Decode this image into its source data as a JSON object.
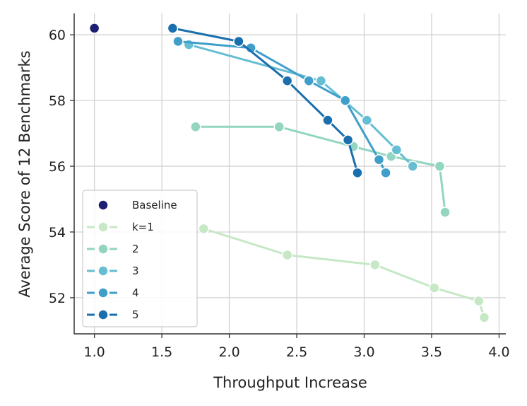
{
  "chart_data": {
    "type": "line",
    "title": "",
    "xlabel": "Throughput Increase",
    "ylabel": "Average Score of 12 Benchmarks",
    "xlim": [
      0.85,
      4.05
    ],
    "ylim": [
      50.9,
      60.65
    ],
    "xticks": [
      1.0,
      1.5,
      2.0,
      2.5,
      3.0,
      3.5,
      4.0
    ],
    "xtick_labels": [
      "1.0",
      "1.5",
      "2.0",
      "2.5",
      "3.0",
      "3.5",
      "4.0"
    ],
    "yticks": [
      52,
      54,
      56,
      58,
      60
    ],
    "ytick_labels": [
      "52",
      "54",
      "56",
      "58",
      "60"
    ],
    "grid": true,
    "legend_position": "bottom-left",
    "baseline": {
      "name": "Baseline",
      "color": "#1d1f72",
      "x": 1.0,
      "y": 60.2
    },
    "series": [
      {
        "name": "k=1",
        "color": "#c6e8c5",
        "x": [
          1.81,
          2.43,
          3.08,
          3.52,
          3.85,
          3.89
        ],
        "y": [
          54.1,
          53.3,
          53.0,
          52.3,
          51.9,
          51.4
        ]
      },
      {
        "name": "2",
        "color": "#92d5c0",
        "x": [
          1.75,
          2.37,
          2.92,
          3.2,
          3.56,
          3.6
        ],
        "y": [
          57.2,
          57.2,
          56.6,
          56.3,
          56.0,
          54.6
        ]
      },
      {
        "name": "3",
        "color": "#66bed3",
        "x": [
          1.7,
          2.68,
          3.02,
          3.24,
          3.36
        ],
        "y": [
          59.7,
          58.6,
          57.4,
          56.5,
          56.0
        ]
      },
      {
        "name": "4",
        "color": "#3f9fca",
        "x": [
          1.62,
          2.16,
          2.59,
          2.86,
          3.11,
          3.16
        ],
        "y": [
          59.8,
          59.6,
          58.6,
          58.0,
          56.2,
          55.8
        ]
      },
      {
        "name": "5",
        "color": "#1a6fae",
        "x": [
          1.58,
          2.07,
          2.43,
          2.73,
          2.88,
          2.95
        ],
        "y": [
          60.2,
          59.8,
          58.6,
          57.4,
          56.8,
          55.8
        ]
      }
    ]
  }
}
